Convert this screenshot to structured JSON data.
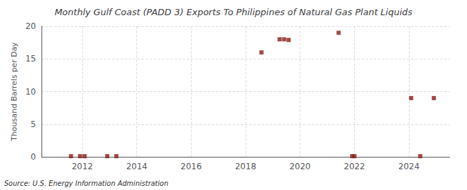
{
  "chart_data": {
    "type": "scatter",
    "title": "Monthly Gulf Coast (PADD 3) Exports To Philippines of Natural Gas Plant Liquids",
    "ylabel": "Thousand Barrels per Day",
    "source": "Source: U.S. Energy Information Administration",
    "x": [
      2011.583,
      2011.917,
      2012.083,
      2012.917,
      2013.25,
      2018.583,
      2019.25,
      2019.417,
      2019.583,
      2021.417,
      2021.917,
      2022.0,
      2024.083,
      2024.417,
      2024.917
    ],
    "values": [
      0.1,
      0.1,
      0.1,
      0.1,
      0.1,
      16.0,
      18.0,
      18.0,
      17.9,
      19.0,
      0.1,
      0.1,
      9.0,
      0.1,
      9.0
    ],
    "color": "#8b1a1a",
    "marker": "square",
    "xlim": [
      2010.5,
      2025.5
    ],
    "ylim": [
      0,
      20
    ],
    "xticks": [
      2012,
      2014,
      2016,
      2018,
      2020,
      2022,
      2024
    ],
    "yticks": [
      0,
      5,
      10,
      15,
      20
    ],
    "grid": true
  }
}
